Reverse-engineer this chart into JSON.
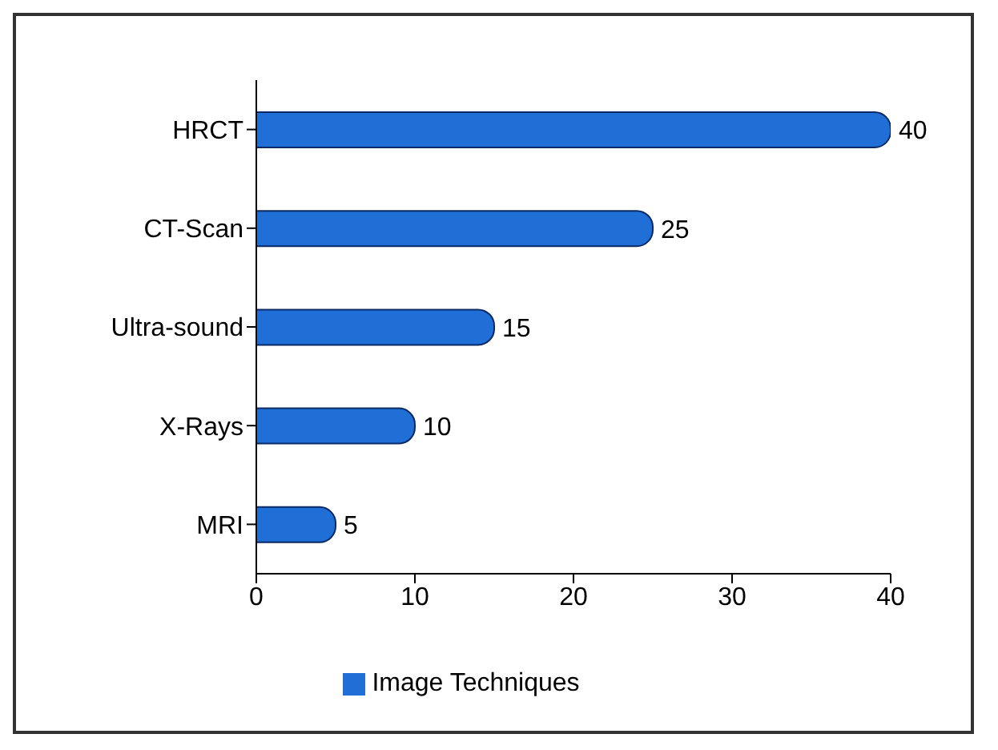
{
  "chart_data": {
    "type": "bar",
    "orientation": "horizontal",
    "categories": [
      "HRCT",
      "CT-Scan",
      "Ultra-sound",
      "X-Rays",
      "MRI"
    ],
    "series": [
      {
        "name": "Image Techniques",
        "color": "#1f6fd6",
        "values": [
          40,
          25,
          15,
          10,
          5
        ]
      }
    ],
    "xlim": [
      0,
      40
    ],
    "xticks": [
      0,
      10,
      20,
      30,
      40
    ],
    "data_labels": true,
    "legend": "bottom",
    "grid": false
  }
}
